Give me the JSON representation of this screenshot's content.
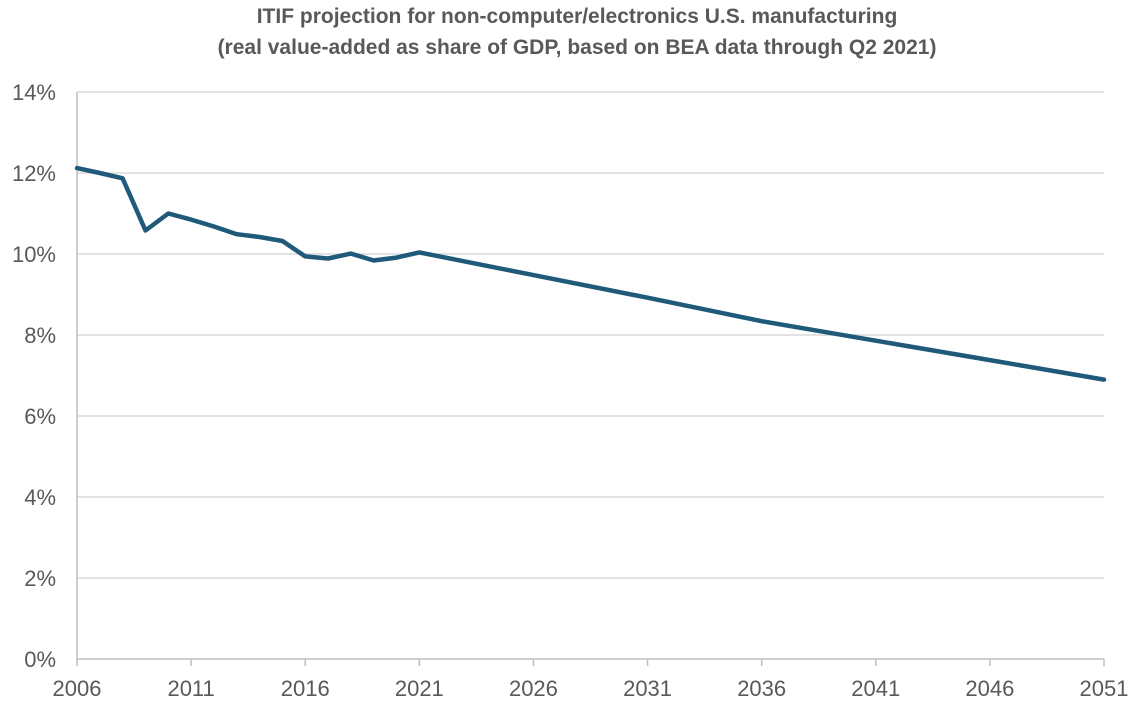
{
  "chart_data": {
    "type": "line",
    "title": "ITIF projection for non-computer/electronics U.S. manufacturing",
    "subtitle": "(real value-added as share of GDP, based on BEA data through Q2 2021)",
    "xlabel": "",
    "ylabel": "",
    "xlim": [
      2006,
      2051
    ],
    "ylim": [
      0,
      14
    ],
    "x_ticks": [
      "2006",
      "2011",
      "2016",
      "2021",
      "2026",
      "2031",
      "2036",
      "2041",
      "2046",
      "2051"
    ],
    "y_ticks": [
      "0%",
      "2%",
      "4%",
      "6%",
      "8%",
      "10%",
      "12%",
      "14%"
    ],
    "grid": true,
    "legend": "none",
    "color": "#1f5a7a",
    "series": [
      {
        "x": [
          2006,
          2007,
          2008,
          2009,
          2010,
          2011,
          2012,
          2013,
          2014,
          2015,
          2016,
          2017,
          2018,
          2019,
          2020,
          2021,
          2026,
          2031,
          2036,
          2041,
          2046,
          2051
        ],
        "values": [
          12.12,
          12.0,
          11.87,
          10.58,
          11.0,
          10.85,
          10.68,
          10.49,
          10.42,
          10.32,
          9.94,
          9.89,
          10.01,
          9.84,
          9.91,
          10.04,
          9.48,
          8.92,
          8.34,
          7.86,
          7.38,
          6.9
        ]
      }
    ]
  }
}
